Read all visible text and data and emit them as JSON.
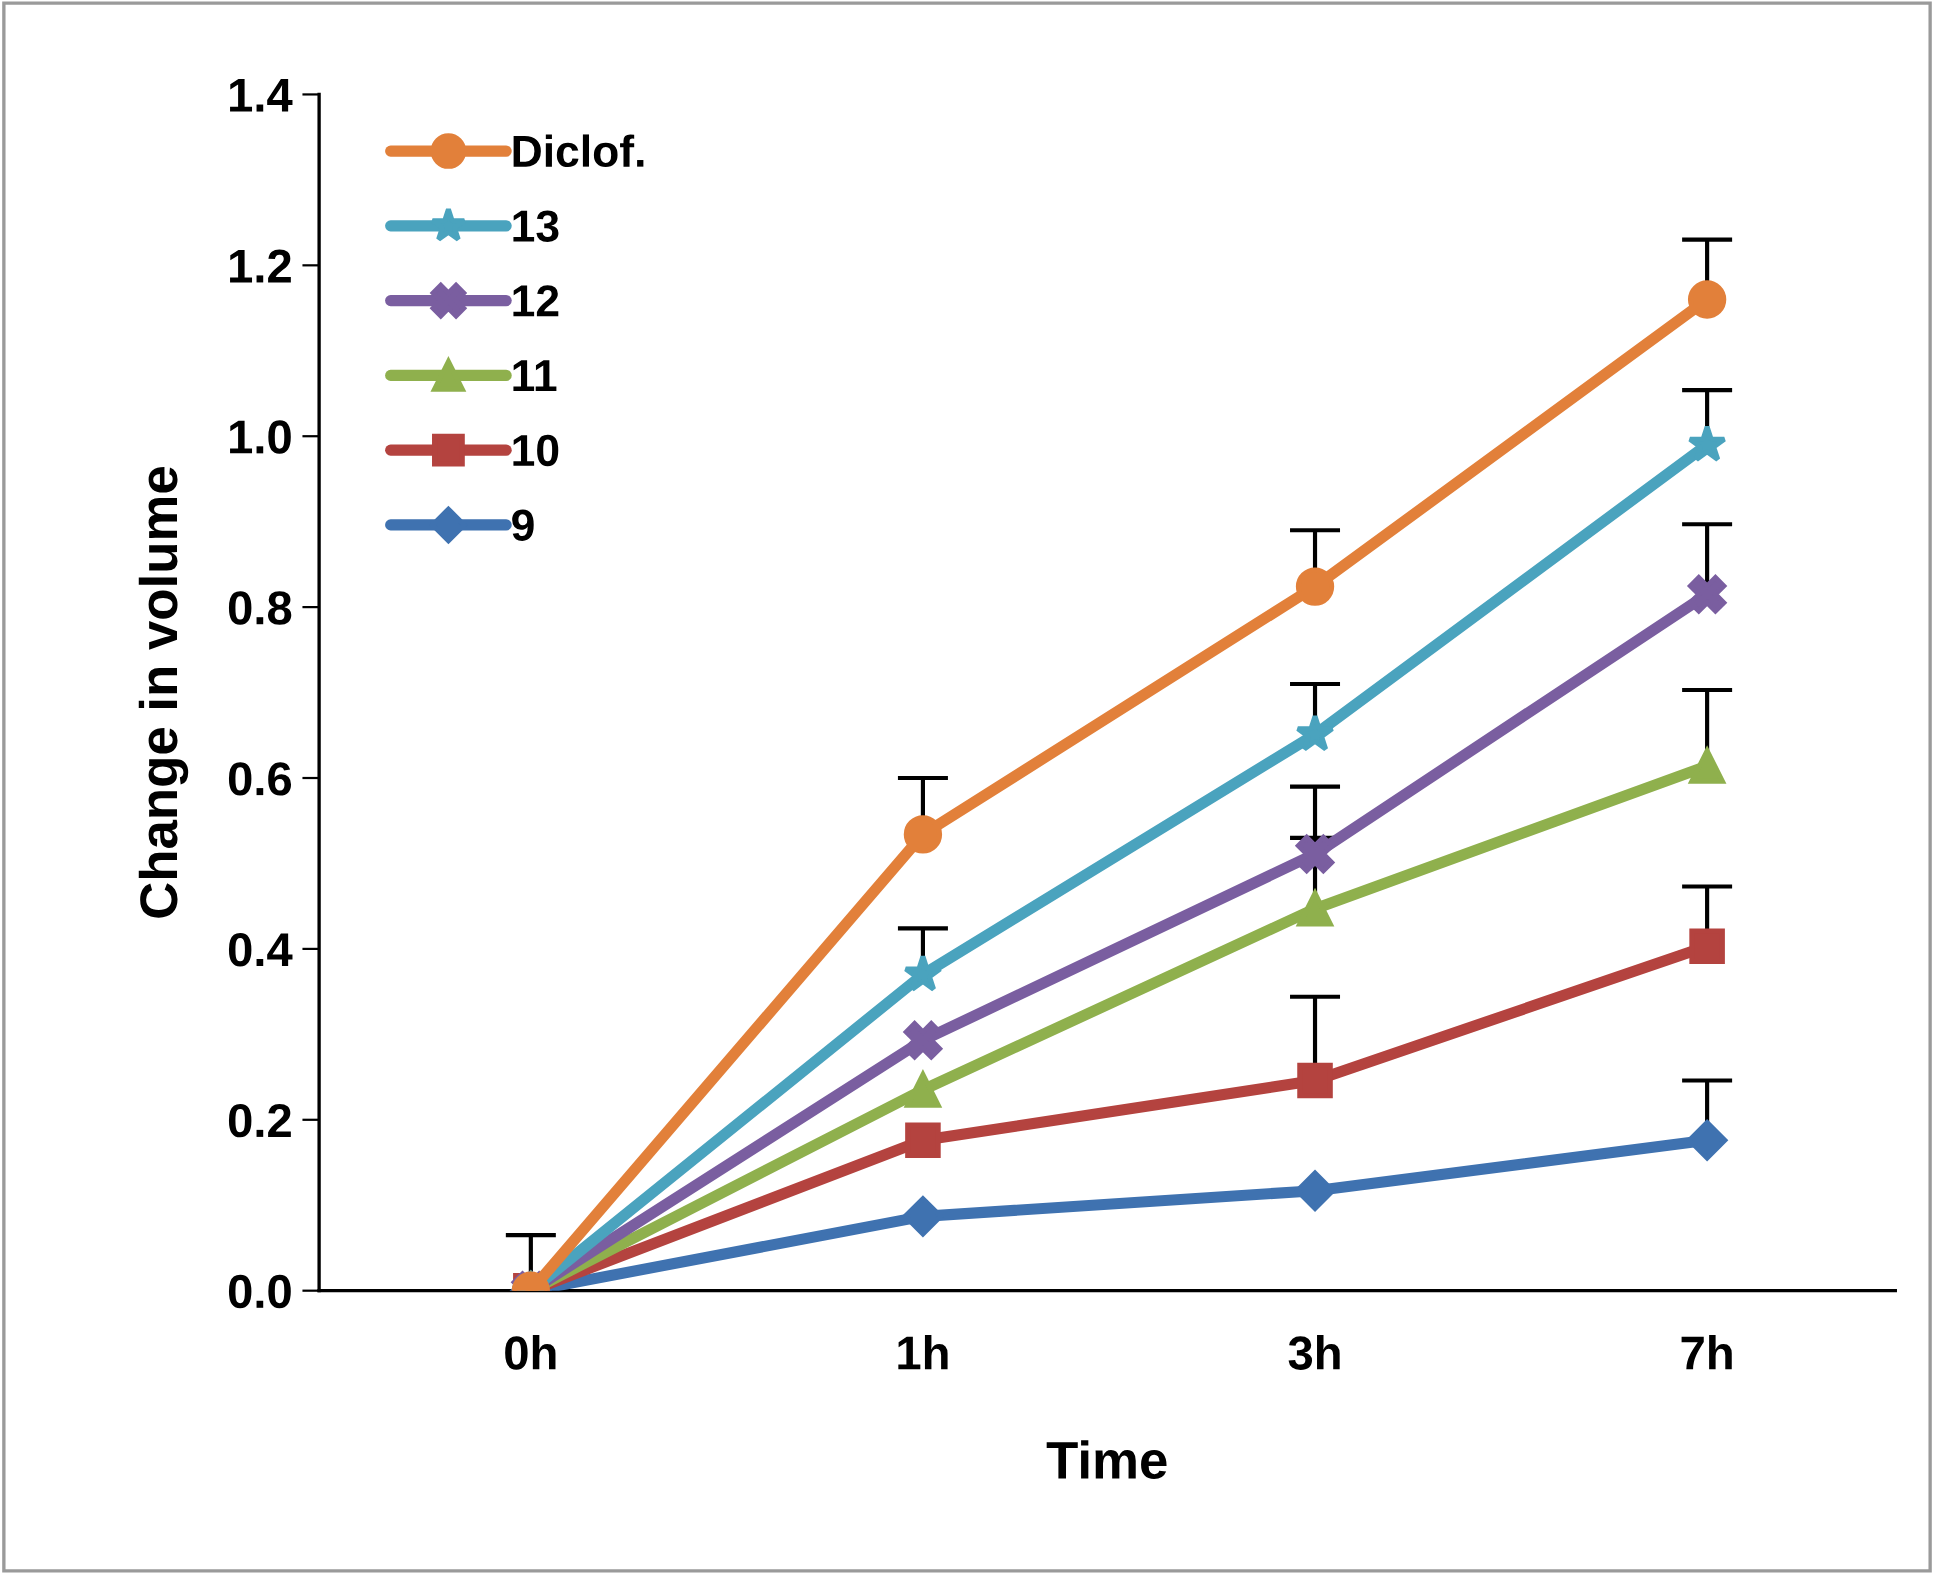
{
  "chart_data": {
    "type": "line",
    "xlabel": "Time",
    "ylabel": "Change in volume",
    "categories": [
      "0h",
      "1h",
      "3h",
      "7h"
    ],
    "series": [
      {
        "name": "Diclof.",
        "color": "#e2803a",
        "marker": "circle",
        "values": [
          0,
          0.534,
          0.824,
          1.16
        ],
        "errors": [
          [
            0,
            0.065
          ],
          [
            0.534,
            0.6
          ],
          [
            0.824,
            0.89
          ],
          [
            1.16,
            1.23
          ]
        ]
      },
      {
        "name": "13",
        "color": "#4aa3be",
        "marker": "star",
        "values": [
          0,
          0.37,
          0.651,
          0.99
        ],
        "errors": [
          null,
          [
            0.37,
            0.424
          ],
          [
            0.651,
            0.71
          ],
          [
            0.99,
            1.054
          ]
        ]
      },
      {
        "name": "12",
        "color": "#7a5ea0",
        "marker": "cross",
        "values": [
          0,
          0.293,
          0.511,
          0.815
        ],
        "errors": [
          null,
          null,
          [
            0.511,
            0.59
          ],
          [
            0.815,
            0.897
          ]
        ]
      },
      {
        "name": "11",
        "color": "#8fb04d",
        "marker": "triangle",
        "values": [
          0,
          0.235,
          0.447,
          0.614
        ],
        "errors": [
          null,
          null,
          [
            0.447,
            0.53
          ],
          [
            0.614,
            0.703
          ]
        ]
      },
      {
        "name": "10",
        "color": "#b4433f",
        "marker": "square",
        "values": [
          0,
          0.176,
          0.246,
          0.403
        ],
        "errors": [
          null,
          null,
          [
            0.246,
            0.344
          ],
          [
            0.403,
            0.473
          ]
        ]
      },
      {
        "name": "9",
        "color": "#3f72b0",
        "marker": "diamond",
        "values": [
          0,
          0.087,
          0.117,
          0.176
        ],
        "errors": [
          null,
          null,
          null,
          [
            0.176,
            0.246
          ]
        ]
      }
    ],
    "ylim": [
      0,
      1.4
    ],
    "yticks": [
      {
        "value": 0,
        "label": "0.0"
      },
      {
        "value": 0.2,
        "label": "0.2"
      },
      {
        "value": 0.4,
        "label": "0.4"
      },
      {
        "value": 0.6,
        "label": "0.6"
      },
      {
        "value": 0.8,
        "label": "0.8"
      },
      {
        "value": 1.0,
        "label": "1.0"
      },
      {
        "value": 1.2,
        "label": "1.2"
      },
      {
        "value": 1.4,
        "label": "1.4"
      }
    ],
    "grid": false,
    "legend": "top left",
    "line_style": "solid"
  }
}
